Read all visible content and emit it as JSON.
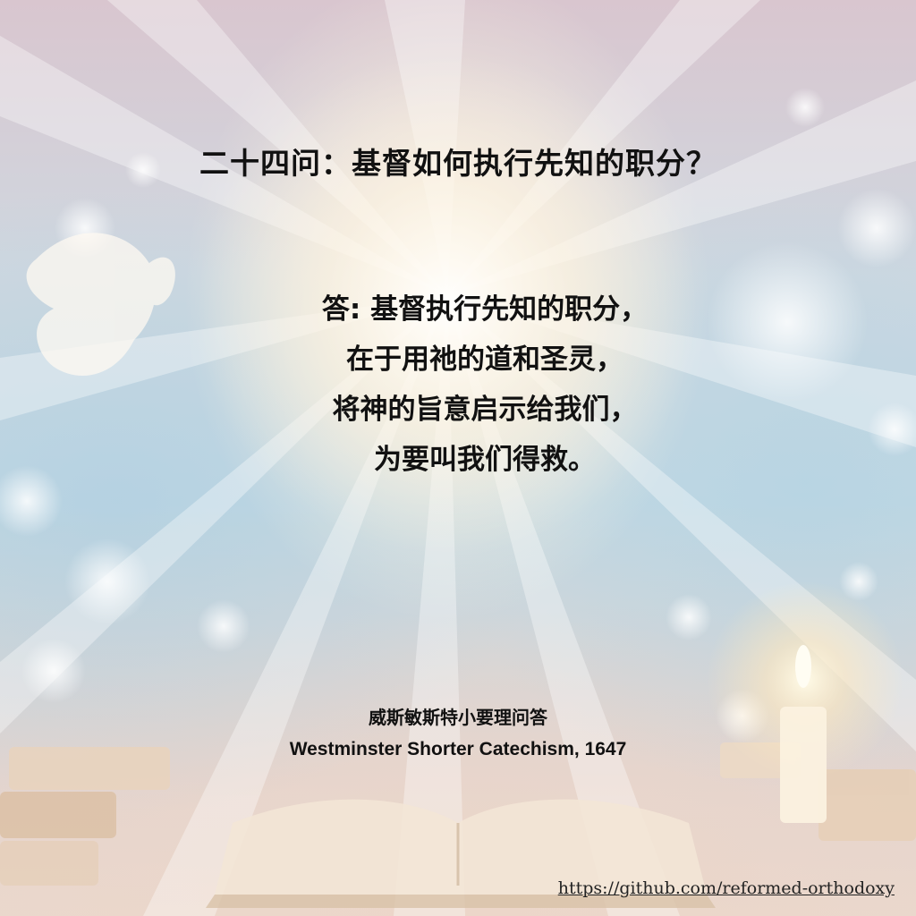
{
  "question": "二十四问：基督如何执行先知的职分？",
  "answer_lines": [
    "答: 基督执行先知的职分，",
    "在于用祂的道和圣灵，",
    "将神的旨意启示给我们，",
    "为要叫我们得救。"
  ],
  "source": {
    "title_zh": "威斯敏斯特小要理问答",
    "title_en": "Westminster Shorter Catechism, 1647"
  },
  "link": "https://github.com/reformed-orthodoxy",
  "colors": {
    "text": "#111111",
    "glow": "#fff6e6",
    "sky": "#c3d8e2"
  }
}
